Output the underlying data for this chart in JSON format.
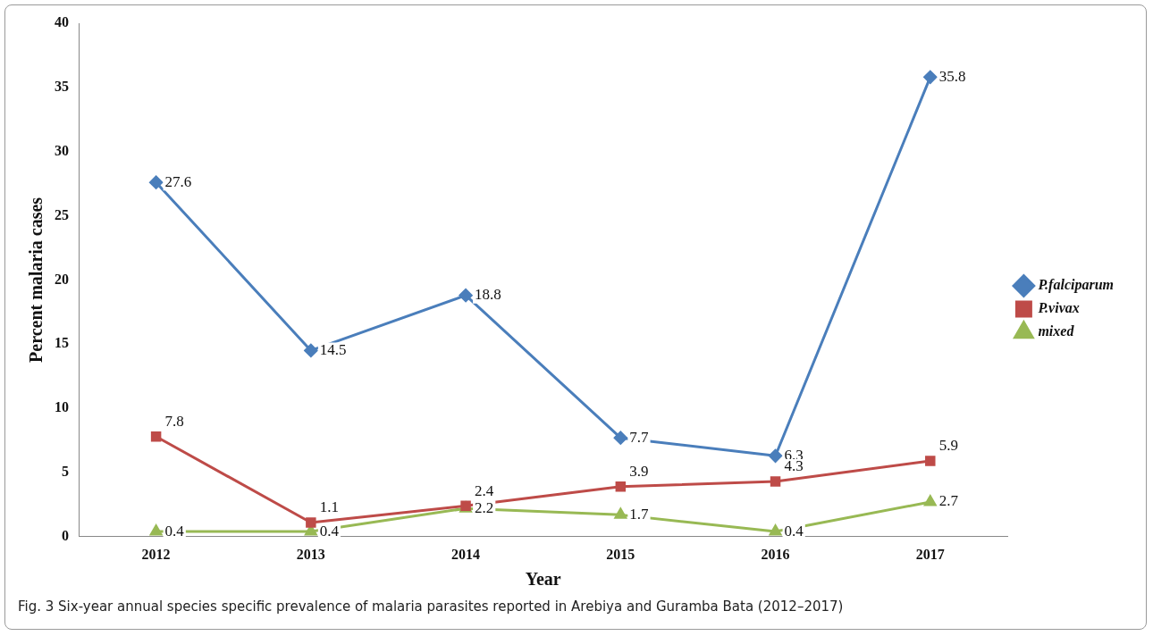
{
  "chart_data": {
    "type": "line",
    "xlabel": "Year",
    "ylabel": "Percent malaria cases",
    "categories": [
      "2012",
      "2013",
      "2014",
      "2015",
      "2016",
      "2017"
    ],
    "series": [
      {
        "name": "P.falciparum",
        "color": "#4a7ebb",
        "marker": "diamond",
        "values": [
          27.6,
          14.5,
          18.8,
          7.7,
          6.3,
          35.8
        ]
      },
      {
        "name": "P.vivax",
        "color": "#be4b48",
        "marker": "square",
        "values": [
          7.8,
          1.1,
          2.4,
          3.9,
          4.3,
          5.9
        ]
      },
      {
        "name": "mixed",
        "color": "#98b954",
        "marker": "triangle",
        "values": [
          0.4,
          0.4,
          2.2,
          1.7,
          0.4,
          2.7
        ]
      }
    ],
    "ylim": [
      0,
      40
    ],
    "yticks": [
      0,
      5,
      10,
      15,
      20,
      25,
      30,
      35,
      40
    ],
    "grid": false,
    "legend": "right",
    "data_labels": true,
    "line_style": "solid",
    "annotations": [
      "Fig. 3  Six-year annual species specific prevalence of malaria parasites reported in Arebiya and Guramba Bata (2012–2017)"
    ]
  }
}
